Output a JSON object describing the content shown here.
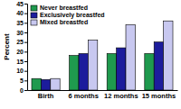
{
  "chart_data": {
    "type": "bar",
    "categories": [
      "Birth",
      "6 months",
      "12 months",
      "15 months"
    ],
    "series": [
      {
        "name": "Never breastfed",
        "color": "#1f9a4e",
        "values": [
          6,
          18,
          19,
          19
        ]
      },
      {
        "name": "Exclusively breastfed",
        "color": "#1c1c9c",
        "values": [
          5.5,
          19,
          22,
          25
        ]
      },
      {
        "name": "Mixed breastfed",
        "color": "#c8c8f0",
        "values": [
          6,
          26,
          34,
          36
        ]
      }
    ],
    "y_label": "Percent",
    "ylim": [
      0,
      45
    ],
    "yticks": [
      0,
      5,
      10,
      15,
      20,
      25,
      30,
      35,
      40,
      45
    ],
    "grid": false,
    "legend": "top-left"
  }
}
